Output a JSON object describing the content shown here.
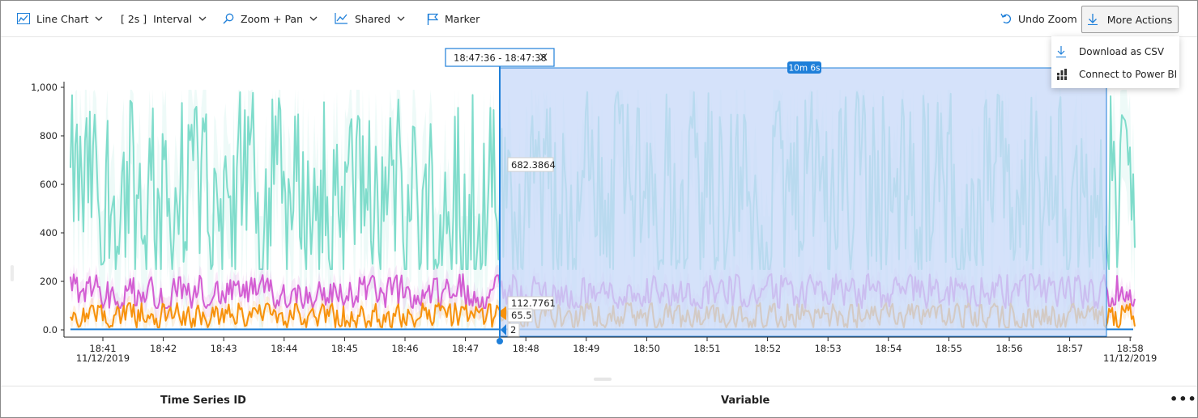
{
  "toolbar": {
    "chart_type_label": "Line Chart",
    "interval_value": "[ 2s ]",
    "interval_label": "Interval",
    "zoom_label": "Zoom + Pan",
    "shared_label": "Shared",
    "marker_label": "Marker",
    "undo_zoom_label": "Undo Zoom",
    "more_actions_label": "More Actions"
  },
  "more_actions_menu": {
    "items": [
      {
        "label": "Download as CSV",
        "icon": "download-icon"
      },
      {
        "label": "Connect to Power BI",
        "icon": "power-bi-icon"
      }
    ]
  },
  "brush": {
    "time_range": "18:47:36 - 18:47:38",
    "duration": "10m 6s"
  },
  "marker_values": {
    "teal": "682.3864",
    "magenta": "112.7761",
    "orange": "65.5",
    "blue": "2"
  },
  "colors": {
    "teal": "#7fdccb",
    "magenta": "#d35ed3",
    "orange": "#f7920c",
    "blue": "#1e7fd9",
    "selection_fill": "#c9daf8",
    "accent": "#1e7fd9"
  },
  "chart_data": {
    "type": "line",
    "y_ticks": [
      "1,000",
      "800",
      "600",
      "400",
      "200",
      "0.0"
    ],
    "x_ticks": [
      "18:41",
      "18:42",
      "18:43",
      "18:44",
      "18:45",
      "18:46",
      "18:47",
      "18:48",
      "18:49",
      "18:50",
      "18:51",
      "18:52",
      "18:53",
      "18:54",
      "18:55",
      "18:56",
      "18:57",
      "18:58"
    ],
    "x_date_first": "11/12/2019",
    "x_date_last": "11/12/2019",
    "ylim": [
      0,
      1000
    ],
    "grid": false,
    "series": [
      {
        "color": "teal",
        "typical_range": [
          250,
          980
        ],
        "mean": 550
      },
      {
        "color": "magenta",
        "typical_range": [
          90,
          230
        ],
        "mean": 150
      },
      {
        "color": "orange",
        "typical_range": [
          10,
          110
        ],
        "mean": 55
      },
      {
        "color": "blue",
        "values": [
          2
        ]
      }
    ]
  },
  "table": {
    "col_time_series_id": "Time Series ID",
    "col_variable": "Variable",
    "more_label": "•••"
  }
}
